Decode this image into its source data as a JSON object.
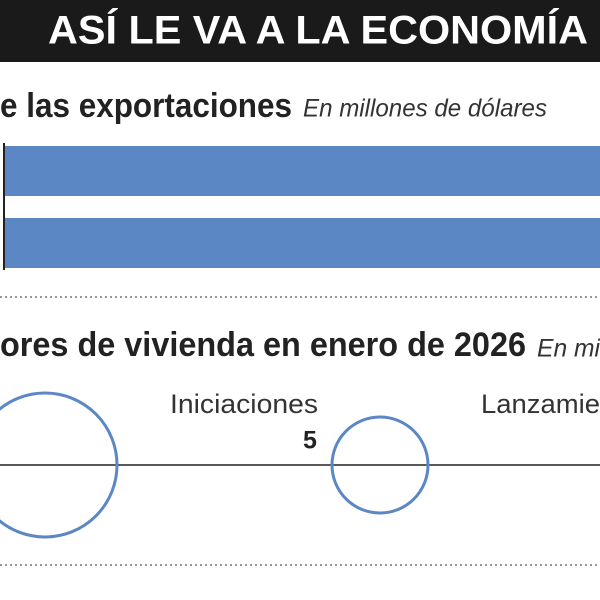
{
  "header": {
    "title": "ASÍ LE VA A LA ECONOMÍA"
  },
  "sections": [
    {
      "title": "e las exportaciones",
      "unit": "En millones de dólares"
    },
    {
      "title": "ores de vivienda en enero de 2026",
      "unit": "En mi",
      "items": [
        {
          "label": "Iniciaciones",
          "value": "5"
        },
        {
          "label": "Lanzamie"
        }
      ]
    }
  ]
}
